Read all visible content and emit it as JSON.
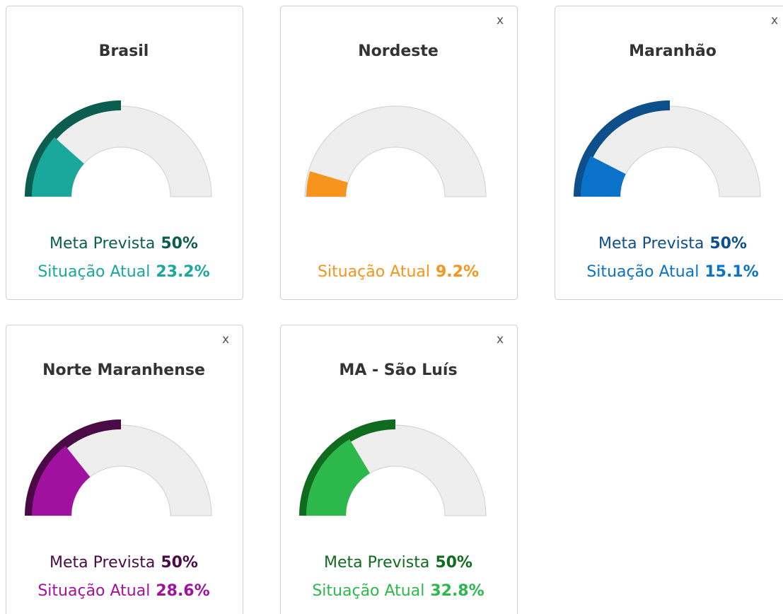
{
  "chart_data": [
    {
      "type": "gauge",
      "title": "Brasil",
      "ylim": [
        0,
        100
      ],
      "series": [
        {
          "name": "Meta Prevista",
          "color": "#0b5e4f",
          "values": [
            50
          ],
          "value_labels": [
            "50%"
          ]
        },
        {
          "name": "Situação Atual",
          "color": "#1aa79c",
          "values": [
            23.2
          ],
          "value_labels": [
            "23.2%"
          ]
        }
      ]
    },
    {
      "type": "gauge",
      "title": "Nordeste",
      "close": "x",
      "ylim": [
        0,
        100
      ],
      "series": [
        {
          "name": "Situação Atual",
          "color": "#f7941d",
          "values": [
            9.2
          ],
          "value_labels": [
            "9.2%"
          ]
        }
      ]
    },
    {
      "type": "gauge",
      "title": "Maranhão",
      "close": "x",
      "ylim": [
        0,
        100
      ],
      "series": [
        {
          "name": "Meta Prevista",
          "color": "#0d4f8b",
          "values": [
            50
          ],
          "value_labels": [
            "50%"
          ]
        },
        {
          "name": "Situação Atual",
          "color": "#0a73c9",
          "values": [
            15.1
          ],
          "value_labels": [
            "15.1%"
          ]
        }
      ]
    },
    {
      "type": "gauge",
      "title": "Norte Maranhense",
      "close": "x",
      "ylim": [
        0,
        100
      ],
      "series": [
        {
          "name": "Meta Prevista",
          "color": "#4a0a45",
          "values": [
            50
          ],
          "value_labels": [
            "50%"
          ]
        },
        {
          "name": "Situação Atual",
          "color": "#a0119f",
          "values": [
            28.6
          ],
          "value_labels": [
            "28.6%"
          ]
        }
      ]
    },
    {
      "type": "gauge",
      "title": "MA - São Luís",
      "close": "x",
      "ylim": [
        0,
        100
      ],
      "series": [
        {
          "name": "Meta Prevista",
          "color": "#0f6b1e",
          "values": [
            50
          ],
          "value_labels": [
            "50%"
          ]
        },
        {
          "name": "Situação Atual",
          "color": "#2db84c",
          "values": [
            32.8
          ],
          "value_labels": [
            "32.8%"
          ]
        }
      ]
    }
  ]
}
